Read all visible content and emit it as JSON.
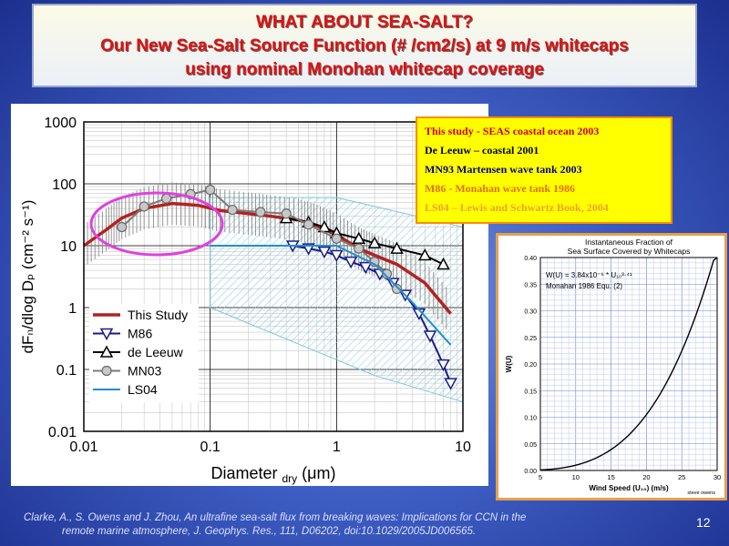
{
  "slide": {
    "title_lines": [
      "WHAT ABOUT SEA-SALT?",
      "Our New Sea-Salt Source Function (# /cm2/s) at 9 m/s whitecaps",
      "using nominal Monohan whitecap coverage"
    ],
    "citation_line1": "Clarke, A., S. Owens and J. Zhou, An ultrafine sea-salt flux from breaking waves: Implications for CCN in the",
    "citation_line2": "remote marine atmosphere, J. Geophys. Res., 111, D06202, doi:10.1029/2005JD006565.",
    "page_number": "12"
  },
  "source_legend": [
    {
      "text": "This study - SEAS coastal ocean 2003",
      "color": "#cc0000"
    },
    {
      "text": "De Leeuw – coastal  2001",
      "color": "#000000"
    },
    {
      "text": "MN93 Martensen wave tank 2003",
      "color": "#000080"
    },
    {
      "text": "M86 - Monahan wave tank 1986",
      "color": "#e07000"
    },
    {
      "text": "LS04 – Lewis and Schwartz Book, 2004",
      "color": "#f0a030"
    }
  ],
  "chart_data": [
    {
      "type": "line",
      "xscale": "log",
      "yscale": "log",
      "xlim": [
        0.01,
        10
      ],
      "ylim": [
        0.01,
        1000
      ],
      "x_ticks": [
        "0.01",
        "0.1",
        "1",
        "10"
      ],
      "y_ticks": [
        "0.01",
        "0.1",
        "1",
        "10",
        "100",
        "1000"
      ],
      "xlabel_main": "Diameter",
      "xlabel_sub": "dry",
      "xlabel_unit": "(μm)",
      "ylabel": "dFₙ/dlog Dₚ (cm⁻² s⁻¹)",
      "grid": true,
      "legend_position": "bottom-left",
      "series": [
        {
          "name": "This Study",
          "color": "#b22222",
          "marker": "none",
          "x": [
            0.01,
            0.015,
            0.02,
            0.03,
            0.05,
            0.08,
            0.12,
            0.2,
            0.3,
            0.5,
            0.7,
            1.0,
            1.5,
            2.0,
            3.0,
            5.0,
            8.0
          ],
          "y": [
            10,
            18,
            28,
            40,
            48,
            45,
            37,
            33,
            30,
            26,
            21,
            15,
            9,
            7,
            5,
            2.5,
            0.8
          ]
        },
        {
          "name": "M86",
          "color": "#1a1a8c",
          "marker": "triangle-down",
          "x": [
            0.45,
            0.6,
            0.8,
            1.0,
            1.3,
            1.7,
            2.2,
            2.8,
            3.5,
            4.5,
            5.5,
            7.0,
            8.0
          ],
          "y": [
            10,
            9,
            8,
            7,
            5.5,
            4.5,
            3.5,
            2.5,
            1.6,
            0.8,
            0.35,
            0.12,
            0.06
          ]
        },
        {
          "name": "de Leeuw",
          "color": "#000000",
          "marker": "triangle-up",
          "x": [
            0.4,
            0.6,
            0.8,
            1.0,
            1.5,
            2.0,
            3.0,
            5.0,
            7.0
          ],
          "y": [
            28,
            24,
            20,
            16,
            13,
            11,
            9,
            7,
            5
          ]
        },
        {
          "name": "MN03",
          "color": "#7a7a7a",
          "marker": "circle",
          "x": [
            0.02,
            0.03,
            0.045,
            0.07,
            0.1,
            0.15,
            0.25,
            0.4,
            0.6,
            1.0,
            1.5,
            2.0,
            2.5,
            3.0
          ],
          "y": [
            20,
            43,
            58,
            68,
            80,
            38,
            35,
            33,
            22,
            13,
            9,
            5.5,
            3.5,
            2.0
          ]
        },
        {
          "name": "LS04",
          "color": "#1e90d0",
          "marker": "none",
          "x": [
            0.1,
            1.0,
            2.0,
            4.0,
            8.0
          ],
          "y": [
            10,
            10,
            5,
            1.2,
            0.25
          ]
        }
      ]
    },
    {
      "type": "line",
      "title_line1": "Instantaneous Fraction of",
      "title_line2": "Sea Surface Covered by Whitecaps",
      "formula": "W(U) = 3.84x10⁻⁶ * U₁₀³·⁴¹",
      "formula_note": "Monahan 1986 Equ. (2)",
      "xlabel": "Wind Speed (U₁₀) (m/s)",
      "ylabel": "W(U)",
      "credit": "steve owens",
      "xlim": [
        5,
        30
      ],
      "ylim": [
        0,
        0.4
      ],
      "x_ticks": [
        "5",
        "10",
        "15",
        "20",
        "25",
        "30"
      ],
      "y_ticks": [
        "0.00",
        "0.05",
        "0.10",
        "0.15",
        "0.20",
        "0.25",
        "0.30",
        "0.35",
        "0.40"
      ],
      "grid": true,
      "formula_coefficient": 3.84e-06,
      "formula_exponent": 3.41
    }
  ]
}
